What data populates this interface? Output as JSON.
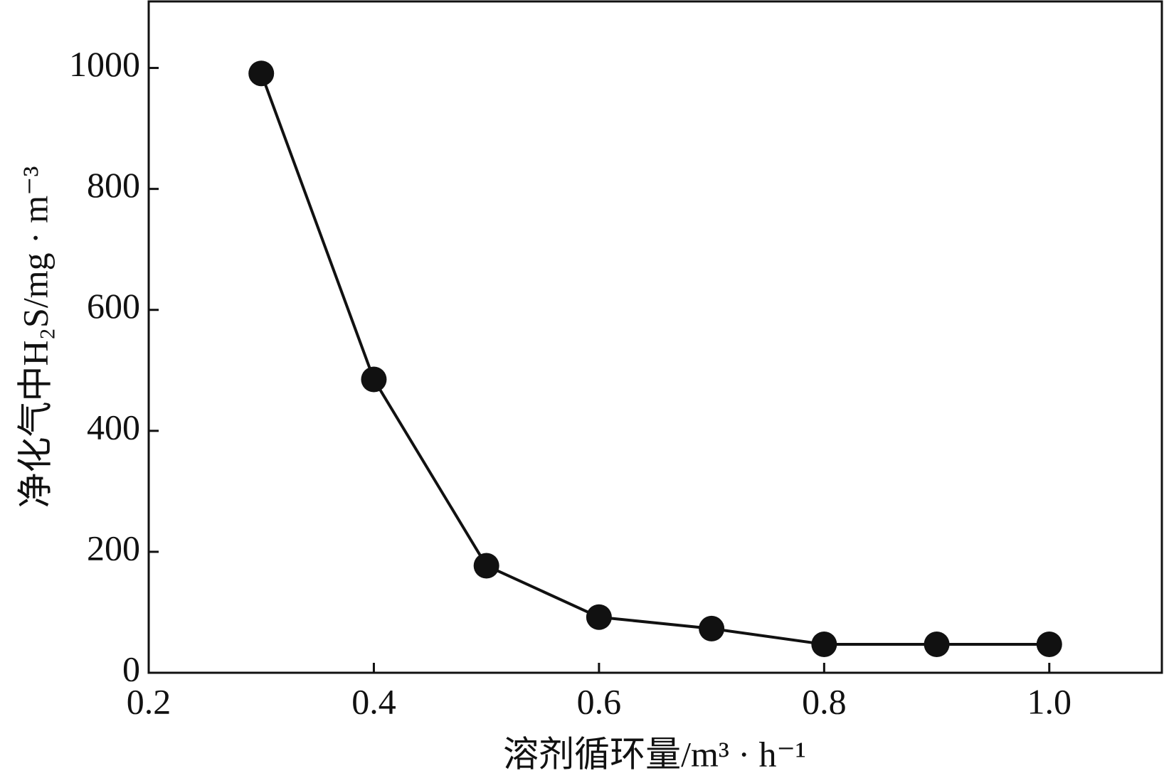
{
  "chart_data": {
    "type": "line",
    "xlabel": "溶剂循环量/m³ · h⁻¹",
    "ylabel": "净化气中H₂S/mg · m⁻³",
    "series": [
      {
        "color": "#111111",
        "x": [
          0.3,
          0.4,
          0.5,
          0.6,
          0.7,
          0.8,
          0.9,
          1.0
        ],
        "values": [
          991,
          485,
          177,
          92,
          73,
          47,
          47,
          47
        ]
      }
    ],
    "xlim": [
      0.2,
      1.1
    ],
    "xticks": [
      0.2,
      0.4,
      0.6,
      0.8,
      {
        "value": 1,
        "label": "1.0"
      }
    ],
    "ylim": [
      0,
      1110
    ],
    "yticks": [
      0,
      200,
      400,
      600,
      800,
      1000
    ],
    "grid": false
  }
}
